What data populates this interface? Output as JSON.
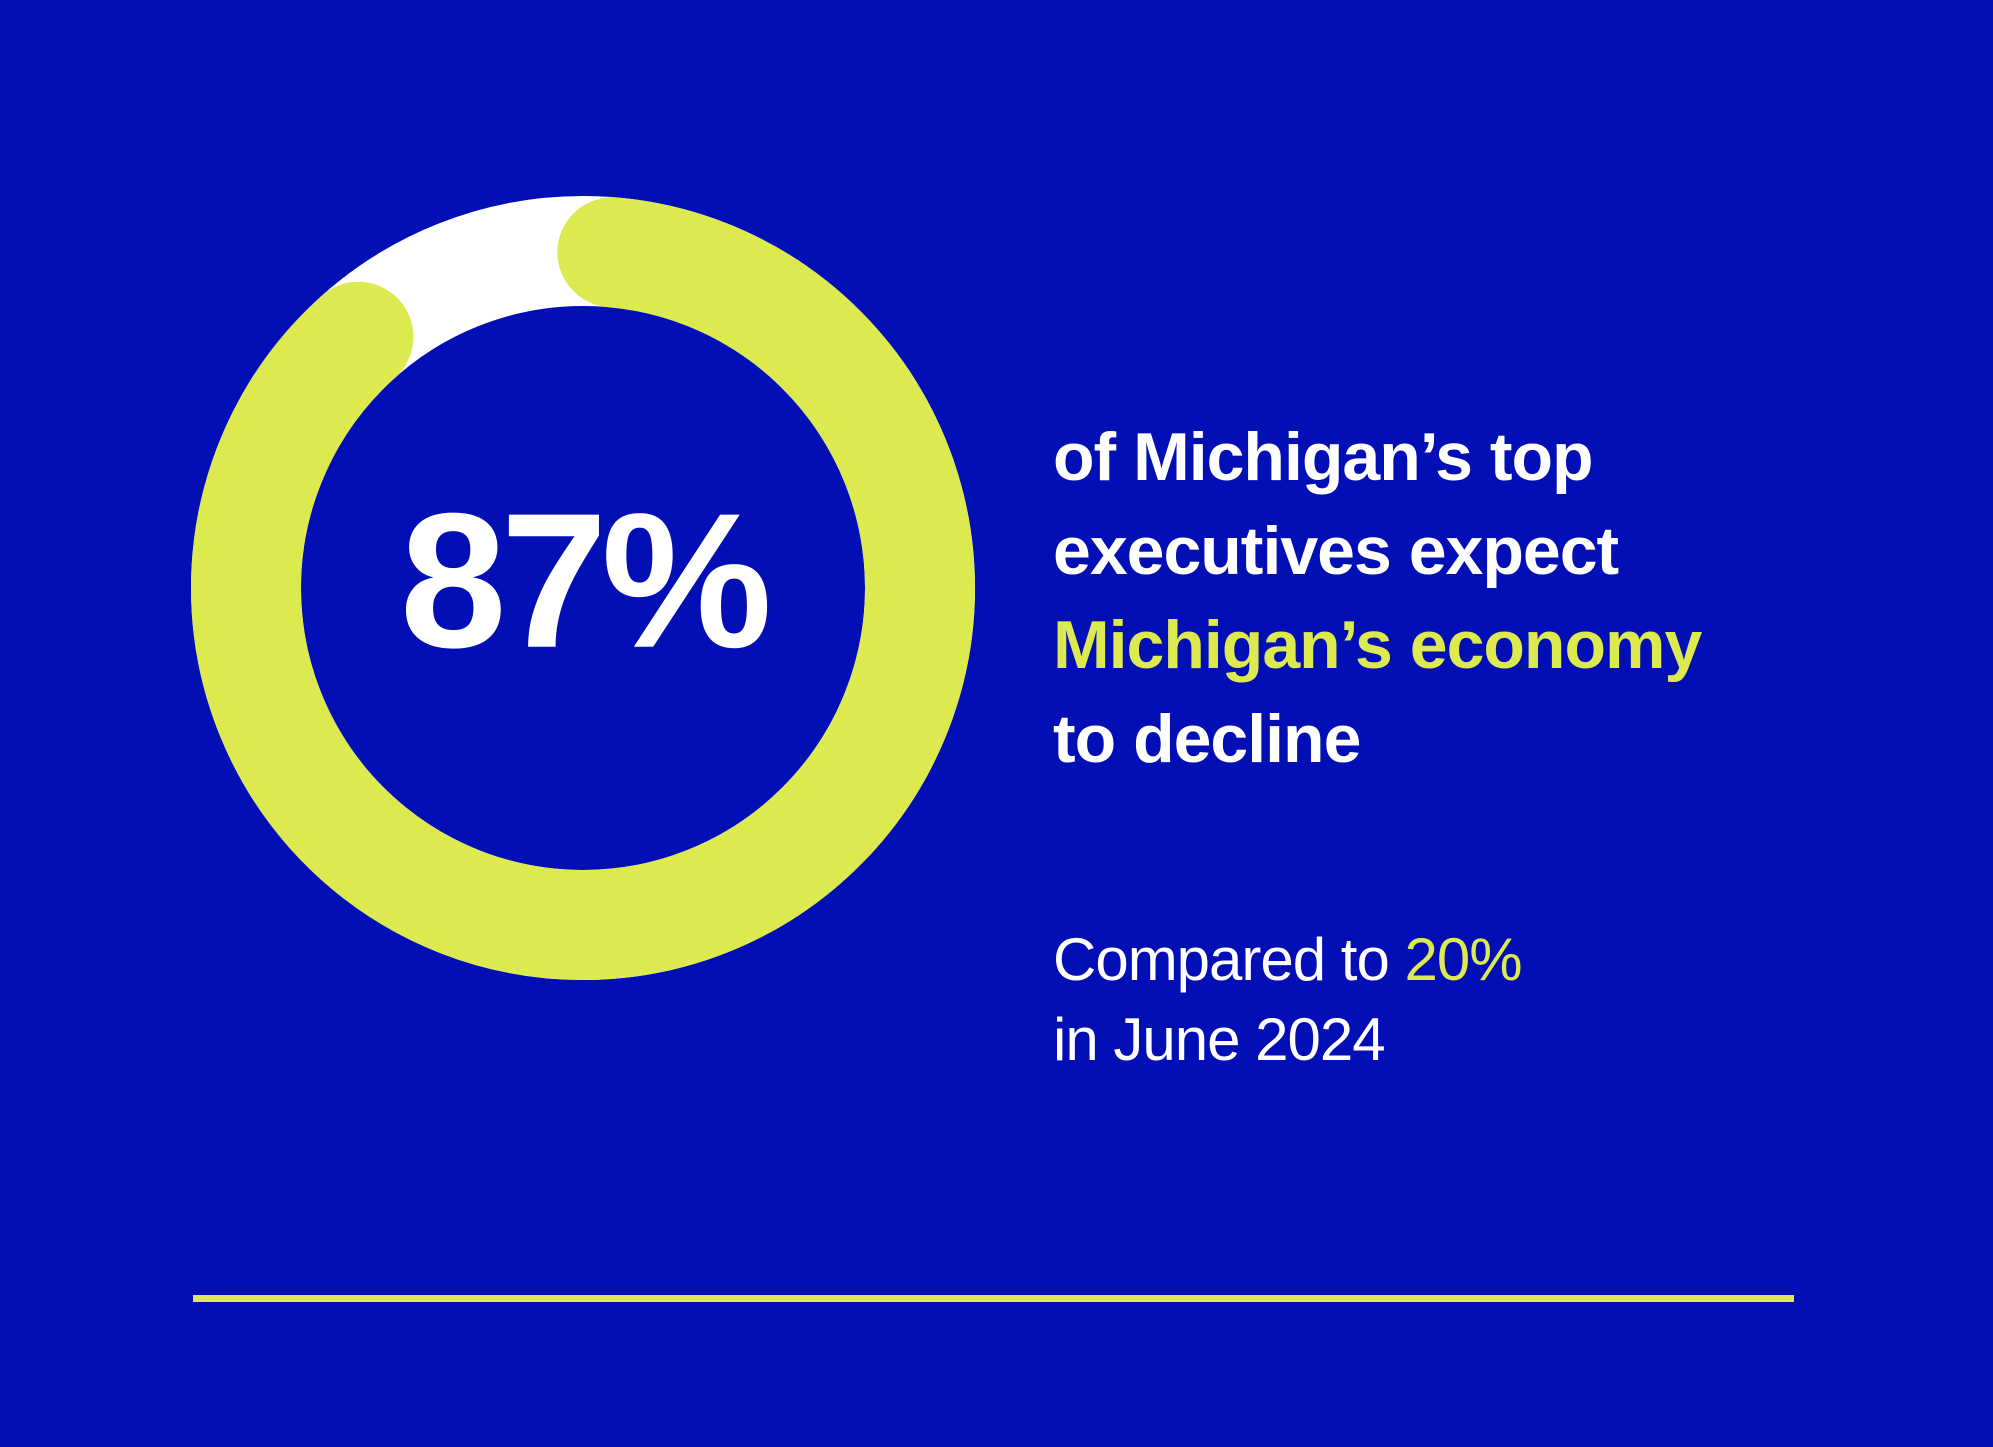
{
  "chart_data": {
    "type": "donut",
    "value": 87,
    "max": 100,
    "value_label": "87%",
    "value_color": "#dce94f",
    "remainder_color": "#ffffff",
    "background_color": "#020fb5",
    "label_color": "#ffffff"
  },
  "headline": {
    "line1": "of Michigan’s top",
    "line2": "executives expect",
    "line3_accent": "Michigan’s economy",
    "line4": "to decline"
  },
  "comparison": {
    "prefix": "Compared to ",
    "value": "20%",
    "suffix": "in June 2024"
  },
  "colors": {
    "accent": "#dce94f",
    "text": "#ffffff",
    "background": "#020fb5"
  }
}
